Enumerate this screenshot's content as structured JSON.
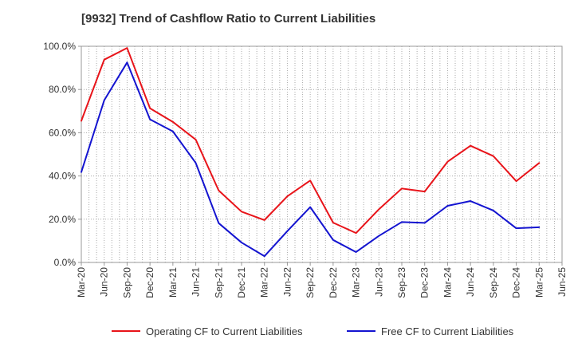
{
  "chart_data": {
    "type": "line",
    "title": "[9932]  Trend of Cashflow Ratio to Current Liabilities",
    "xlabel": "",
    "ylabel": "",
    "ylim": [
      0,
      100
    ],
    "y_ticks": [
      "0.0%",
      "20.0%",
      "40.0%",
      "60.0%",
      "80.0%",
      "100.0%"
    ],
    "x_ticks": [
      "Mar-20",
      "Jun-20",
      "Sep-20",
      "Dec-20",
      "Mar-21",
      "Jun-21",
      "Sep-21",
      "Dec-21",
      "Mar-22",
      "Jun-22",
      "Sep-22",
      "Dec-22",
      "Mar-23",
      "Jun-23",
      "Sep-23",
      "Dec-23",
      "Mar-24",
      "Jun-24",
      "Sep-24",
      "Dec-24",
      "Mar-25",
      "Jun-25"
    ],
    "grid": true,
    "legend_position": "bottom",
    "series": [
      {
        "name": "Operating CF to Current Liabilities",
        "color": "#e8141a",
        "values": [
          65.5,
          93.8,
          99.2,
          71.3,
          65.0,
          56.8,
          33.3,
          23.5,
          19.6,
          30.6,
          37.9,
          18.4,
          13.6,
          24.6,
          34.2,
          32.8,
          46.6,
          54.0,
          49.2,
          37.6,
          46.0,
          null
        ]
      },
      {
        "name": "Free CF to Current Liabilities",
        "color": "#1414d0",
        "values": [
          41.8,
          75.0,
          92.5,
          66.2,
          60.6,
          46.0,
          18.2,
          9.2,
          2.9,
          14.5,
          25.6,
          10.4,
          4.8,
          12.3,
          18.7,
          18.3,
          26.2,
          28.4,
          24.0,
          15.8,
          16.3,
          null
        ]
      }
    ]
  }
}
